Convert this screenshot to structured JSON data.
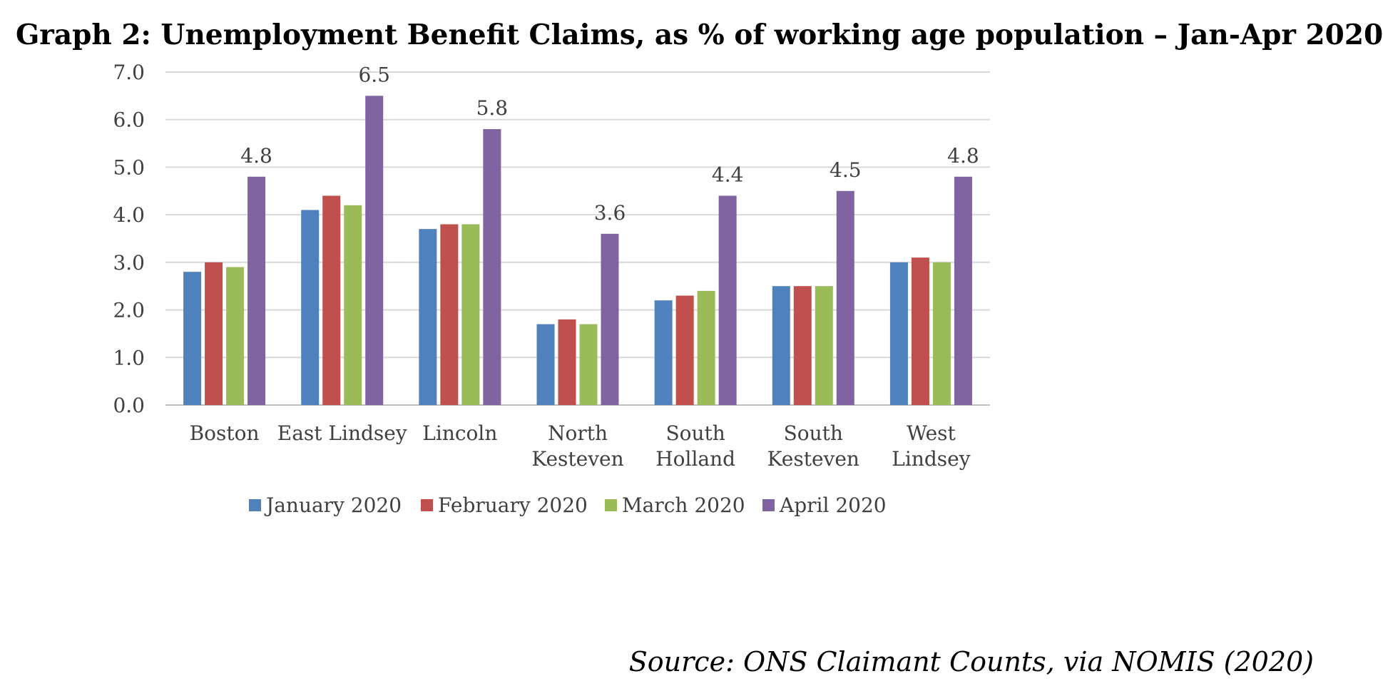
{
  "chart_data": {
    "type": "bar",
    "title": "Graph 2: Unemployment Benefit Claims, as % of working age population – Jan-Apr 2020",
    "categories": [
      [
        "Boston"
      ],
      [
        "East Lindsey"
      ],
      [
        "Lincoln"
      ],
      [
        "North",
        "Kesteven"
      ],
      [
        "South",
        "Holland"
      ],
      [
        "South",
        "Kesteven"
      ],
      [
        "West",
        "Lindsey"
      ]
    ],
    "series": [
      {
        "name": "January 2020",
        "color": "#4f81bd",
        "values": [
          2.8,
          4.1,
          3.7,
          1.7,
          2.2,
          2.5,
          3.0
        ]
      },
      {
        "name": "February 2020",
        "color": "#c0504d",
        "values": [
          3.0,
          4.4,
          3.8,
          1.8,
          2.3,
          2.5,
          3.1
        ]
      },
      {
        "name": "March 2020",
        "color": "#9bbb59",
        "values": [
          2.9,
          4.2,
          3.8,
          1.7,
          2.4,
          2.5,
          3.0
        ]
      },
      {
        "name": "April 2020",
        "color": "#8064a2",
        "values": [
          4.8,
          6.5,
          5.8,
          3.6,
          4.4,
          4.5,
          4.8
        ],
        "data_labels": [
          "4.8",
          "6.5",
          "5.8",
          "3.6",
          "4.4",
          "4.5",
          "4.8"
        ]
      }
    ],
    "ylim": [
      0,
      7
    ],
    "yticks": [
      "0.0",
      "1.0",
      "2.0",
      "3.0",
      "4.0",
      "5.0",
      "6.0",
      "7.0"
    ],
    "grid": true,
    "legend": "bottom",
    "source": "Source: ONS Claimant Counts, via NOMIS (2020)"
  }
}
